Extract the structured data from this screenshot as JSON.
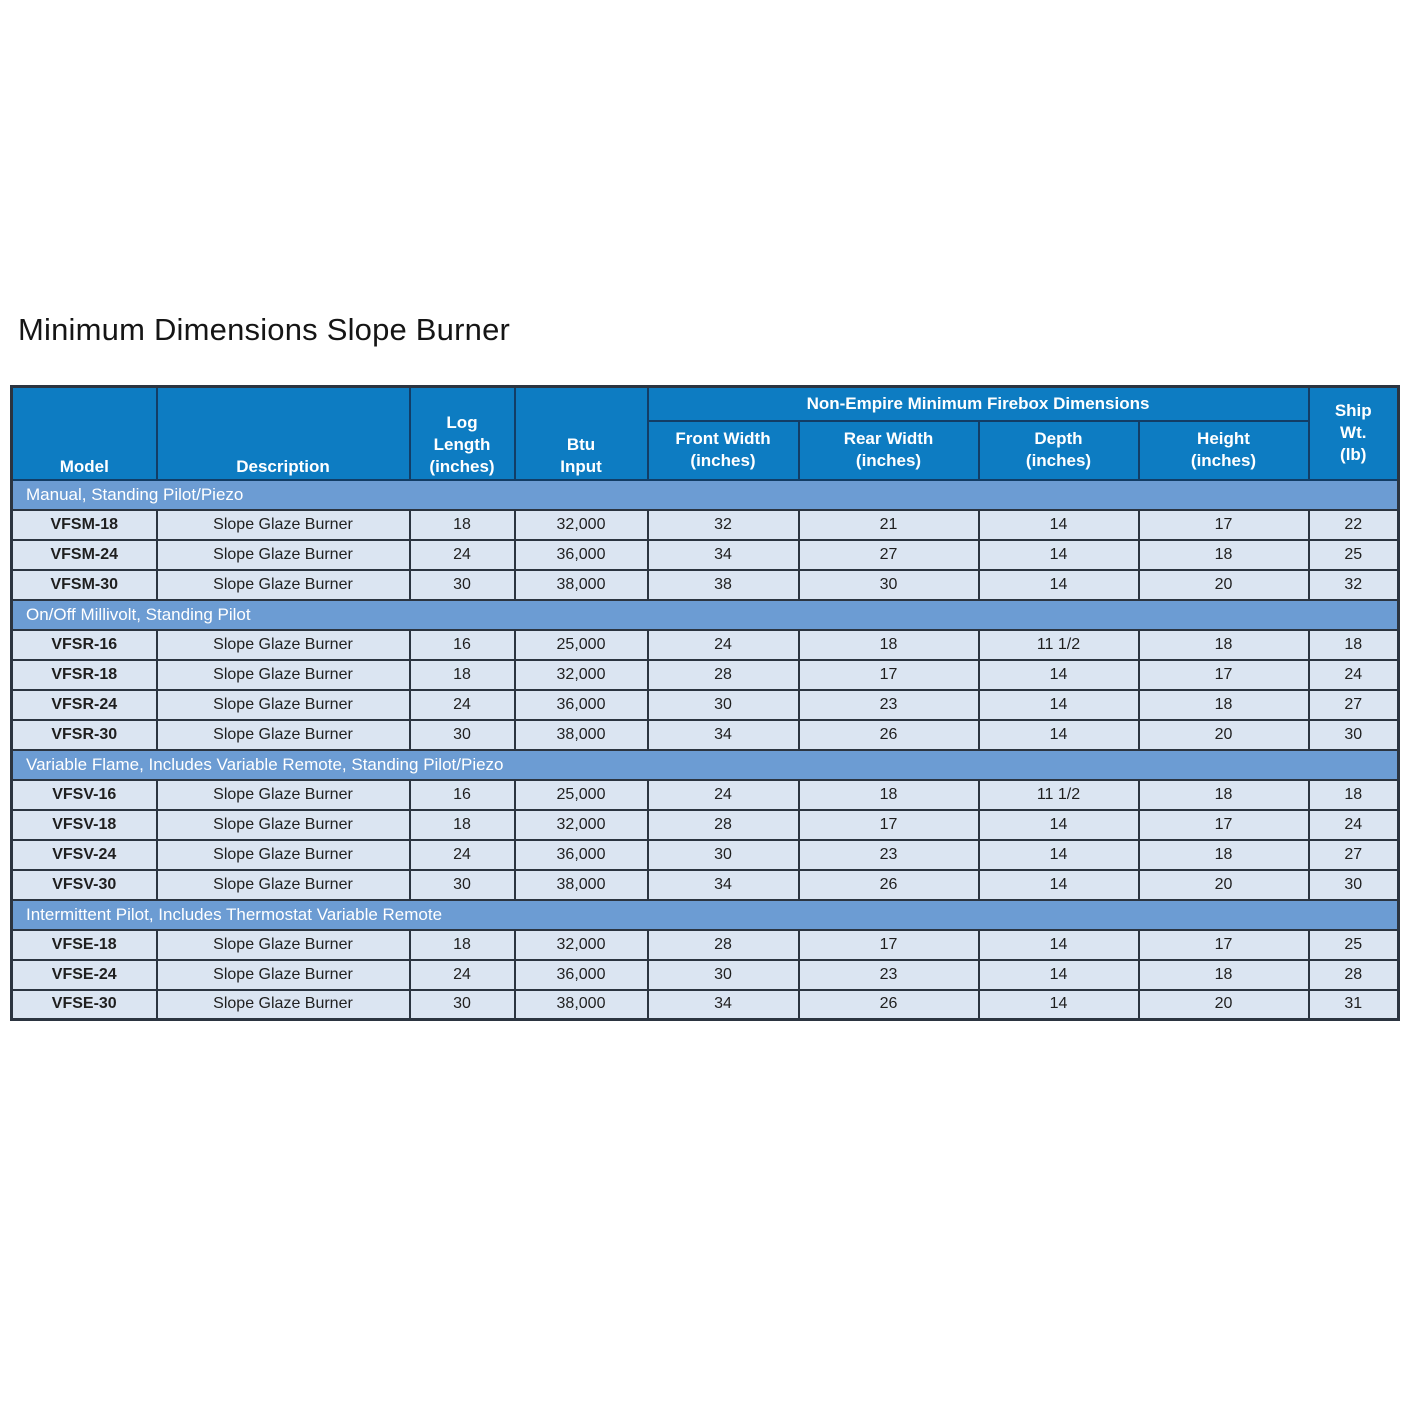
{
  "page": {
    "title": "Minimum Dimensions Slope Burner"
  },
  "colors": {
    "header_bg": "#0d7cc2",
    "section_bg": "#6c9cd3",
    "row_bg": "#dbe5f2",
    "border_dark": "#2b3440",
    "border_navy": "#123d66",
    "header_text": "#ffffff",
    "body_text": "#1f1f1f"
  },
  "table": {
    "group_header": "Non-Empire Minimum Firebox Dimensions",
    "columns": {
      "model": "Model",
      "description": "Description",
      "log_length": "Log\nLength\n(inches)",
      "btu_input": "Btu\nInput",
      "front_width": "Front Width\n(inches)",
      "rear_width": "Rear Width\n(inches)",
      "depth": "Depth\n(inches)",
      "height": "Height\n(inches)",
      "ship_wt": "Ship\nWt.\n(lb)"
    },
    "sections": [
      {
        "label": "Manual, Standing Pilot/Piezo",
        "rows": [
          {
            "model": "VFSM-18",
            "description": "Slope Glaze Burner",
            "log_length": "18",
            "btu_input": "32,000",
            "front_width": "32",
            "rear_width": "21",
            "depth": "14",
            "height": "17",
            "ship_wt": "22"
          },
          {
            "model": "VFSM-24",
            "description": "Slope Glaze Burner",
            "log_length": "24",
            "btu_input": "36,000",
            "front_width": "34",
            "rear_width": "27",
            "depth": "14",
            "height": "18",
            "ship_wt": "25"
          },
          {
            "model": "VFSM-30",
            "description": "Slope Glaze Burner",
            "log_length": "30",
            "btu_input": "38,000",
            "front_width": "38",
            "rear_width": "30",
            "depth": "14",
            "height": "20",
            "ship_wt": "32"
          }
        ]
      },
      {
        "label": "On/Off Millivolt, Standing Pilot",
        "rows": [
          {
            "model": "VFSR-16",
            "description": "Slope Glaze Burner",
            "log_length": "16",
            "btu_input": "25,000",
            "front_width": "24",
            "rear_width": "18",
            "depth": "11 1/2",
            "height": "18",
            "ship_wt": "18"
          },
          {
            "model": "VFSR-18",
            "description": "Slope Glaze Burner",
            "log_length": "18",
            "btu_input": "32,000",
            "front_width": "28",
            "rear_width": "17",
            "depth": "14",
            "height": "17",
            "ship_wt": "24"
          },
          {
            "model": "VFSR-24",
            "description": "Slope Glaze Burner",
            "log_length": "24",
            "btu_input": "36,000",
            "front_width": "30",
            "rear_width": "23",
            "depth": "14",
            "height": "18",
            "ship_wt": "27"
          },
          {
            "model": "VFSR-30",
            "description": "Slope Glaze Burner",
            "log_length": "30",
            "btu_input": "38,000",
            "front_width": "34",
            "rear_width": "26",
            "depth": "14",
            "height": "20",
            "ship_wt": "30"
          }
        ]
      },
      {
        "label": "Variable Flame, Includes Variable Remote, Standing Pilot/Piezo",
        "rows": [
          {
            "model": "VFSV-16",
            "description": "Slope Glaze Burner",
            "log_length": "16",
            "btu_input": "25,000",
            "front_width": "24",
            "rear_width": "18",
            "depth": "11 1/2",
            "height": "18",
            "ship_wt": "18"
          },
          {
            "model": "VFSV-18",
            "description": "Slope Glaze Burner",
            "log_length": "18",
            "btu_input": "32,000",
            "front_width": "28",
            "rear_width": "17",
            "depth": "14",
            "height": "17",
            "ship_wt": "24"
          },
          {
            "model": "VFSV-24",
            "description": "Slope Glaze Burner",
            "log_length": "24",
            "btu_input": "36,000",
            "front_width": "30",
            "rear_width": "23",
            "depth": "14",
            "height": "18",
            "ship_wt": "27"
          },
          {
            "model": "VFSV-30",
            "description": "Slope Glaze Burner",
            "log_length": "30",
            "btu_input": "38,000",
            "front_width": "34",
            "rear_width": "26",
            "depth": "14",
            "height": "20",
            "ship_wt": "30"
          }
        ]
      },
      {
        "label": "Intermittent Pilot, Includes Thermostat Variable Remote",
        "rows": [
          {
            "model": "VFSE-18",
            "description": "Slope Glaze Burner",
            "log_length": "18",
            "btu_input": "32,000",
            "front_width": "28",
            "rear_width": "17",
            "depth": "14",
            "height": "17",
            "ship_wt": "25"
          },
          {
            "model": "VFSE-24",
            "description": "Slope Glaze Burner",
            "log_length": "24",
            "btu_input": "36,000",
            "front_width": "30",
            "rear_width": "23",
            "depth": "14",
            "height": "18",
            "ship_wt": "28"
          },
          {
            "model": "VFSE-30",
            "description": "Slope Glaze Burner",
            "log_length": "30",
            "btu_input": "38,000",
            "front_width": "34",
            "rear_width": "26",
            "depth": "14",
            "height": "20",
            "ship_wt": "31"
          }
        ]
      }
    ]
  }
}
